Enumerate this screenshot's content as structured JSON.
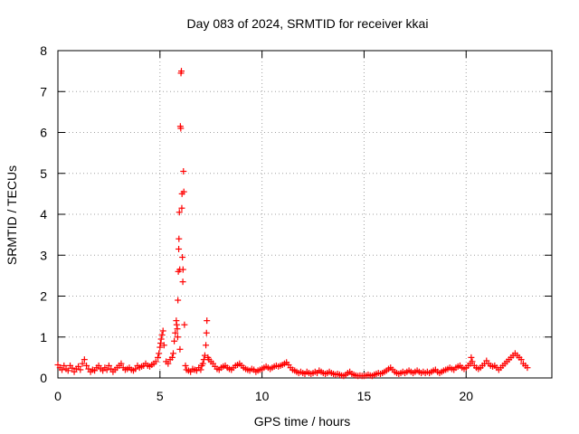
{
  "chart_data": {
    "type": "scatter",
    "title": "Day 083 of 2024, SRMTID for receiver kkai",
    "xlabel": "GPS time / hours",
    "ylabel": "SRMTID / TECUs",
    "xlim": [
      0,
      24.2
    ],
    "ylim": [
      0,
      8
    ],
    "x_ticks": [
      0,
      5,
      10,
      15,
      20
    ],
    "y_ticks": [
      0,
      1,
      2,
      3,
      4,
      5,
      6,
      7,
      8
    ],
    "grid": true,
    "marker": "+",
    "marker_color": "#ff0000",
    "series": [
      {
        "name": "SRMTID",
        "points": [
          [
            0.0,
            0.32
          ],
          [
            0.1,
            0.25
          ],
          [
            0.2,
            0.2
          ],
          [
            0.3,
            0.3
          ],
          [
            0.4,
            0.22
          ],
          [
            0.5,
            0.18
          ],
          [
            0.6,
            0.3
          ],
          [
            0.7,
            0.24
          ],
          [
            0.8,
            0.15
          ],
          [
            0.9,
            0.22
          ],
          [
            1.0,
            0.28
          ],
          [
            1.1,
            0.2
          ],
          [
            1.2,
            0.35
          ],
          [
            1.3,
            0.45
          ],
          [
            1.4,
            0.3
          ],
          [
            1.5,
            0.22
          ],
          [
            1.6,
            0.15
          ],
          [
            1.7,
            0.2
          ],
          [
            1.8,
            0.18
          ],
          [
            1.9,
            0.25
          ],
          [
            2.0,
            0.3
          ],
          [
            2.1,
            0.22
          ],
          [
            2.2,
            0.18
          ],
          [
            2.3,
            0.25
          ],
          [
            2.4,
            0.2
          ],
          [
            2.5,
            0.3
          ],
          [
            2.6,
            0.22
          ],
          [
            2.7,
            0.15
          ],
          [
            2.8,
            0.2
          ],
          [
            2.9,
            0.25
          ],
          [
            3.0,
            0.3
          ],
          [
            3.1,
            0.35
          ],
          [
            3.2,
            0.25
          ],
          [
            3.3,
            0.2
          ],
          [
            3.4,
            0.22
          ],
          [
            3.5,
            0.25
          ],
          [
            3.6,
            0.2
          ],
          [
            3.7,
            0.18
          ],
          [
            3.8,
            0.22
          ],
          [
            3.9,
            0.3
          ],
          [
            4.0,
            0.25
          ],
          [
            4.1,
            0.28
          ],
          [
            4.2,
            0.3
          ],
          [
            4.3,
            0.35
          ],
          [
            4.4,
            0.3
          ],
          [
            4.5,
            0.28
          ],
          [
            4.6,
            0.32
          ],
          [
            4.7,
            0.35
          ],
          [
            4.8,
            0.4
          ],
          [
            4.9,
            0.5
          ],
          [
            4.95,
            0.6
          ],
          [
            5.0,
            0.75
          ],
          [
            5.03,
            0.85
          ],
          [
            5.06,
            0.95
          ],
          [
            5.1,
            1.05
          ],
          [
            5.15,
            1.15
          ],
          [
            5.2,
            0.8
          ],
          [
            5.3,
            0.4
          ],
          [
            5.4,
            0.35
          ],
          [
            5.5,
            0.45
          ],
          [
            5.6,
            0.5
          ],
          [
            5.65,
            0.6
          ],
          [
            5.7,
            0.9
          ],
          [
            5.75,
            1.1
          ],
          [
            5.8,
            1.4
          ],
          [
            5.82,
            1.3
          ],
          [
            5.85,
            1.2
          ],
          [
            5.87,
            1.0
          ],
          [
            5.88,
            1.9
          ],
          [
            5.9,
            2.6
          ],
          [
            5.92,
            3.15
          ],
          [
            5.93,
            3.4
          ],
          [
            5.95,
            4.05
          ],
          [
            5.97,
            2.65
          ],
          [
            5.98,
            0.7
          ],
          [
            6.0,
            6.15
          ],
          [
            6.02,
            6.1
          ],
          [
            6.03,
            7.45
          ],
          [
            6.05,
            7.5
          ],
          [
            6.07,
            4.15
          ],
          [
            6.08,
            4.5
          ],
          [
            6.1,
            2.95
          ],
          [
            6.12,
            2.35
          ],
          [
            6.13,
            2.65
          ],
          [
            6.15,
            5.05
          ],
          [
            6.17,
            4.55
          ],
          [
            6.2,
            1.3
          ],
          [
            6.25,
            0.3
          ],
          [
            6.3,
            0.2
          ],
          [
            6.4,
            0.18
          ],
          [
            6.5,
            0.15
          ],
          [
            6.6,
            0.22
          ],
          [
            6.7,
            0.2
          ],
          [
            6.8,
            0.18
          ],
          [
            6.9,
            0.25
          ],
          [
            7.0,
            0.2
          ],
          [
            7.05,
            0.3
          ],
          [
            7.1,
            0.35
          ],
          [
            7.15,
            0.45
          ],
          [
            7.2,
            0.55
          ],
          [
            7.25,
            0.8
          ],
          [
            7.28,
            1.1
          ],
          [
            7.3,
            1.4
          ],
          [
            7.35,
            0.5
          ],
          [
            7.4,
            0.45
          ],
          [
            7.5,
            0.4
          ],
          [
            7.6,
            0.35
          ],
          [
            7.7,
            0.28
          ],
          [
            7.8,
            0.22
          ],
          [
            7.9,
            0.2
          ],
          [
            8.0,
            0.25
          ],
          [
            8.1,
            0.28
          ],
          [
            8.2,
            0.3
          ],
          [
            8.3,
            0.25
          ],
          [
            8.4,
            0.22
          ],
          [
            8.5,
            0.2
          ],
          [
            8.6,
            0.25
          ],
          [
            8.7,
            0.3
          ],
          [
            8.8,
            0.32
          ],
          [
            8.9,
            0.35
          ],
          [
            9.0,
            0.3
          ],
          [
            9.1,
            0.25
          ],
          [
            9.2,
            0.22
          ],
          [
            9.3,
            0.2
          ],
          [
            9.4,
            0.18
          ],
          [
            9.5,
            0.22
          ],
          [
            9.6,
            0.2
          ],
          [
            9.7,
            0.15
          ],
          [
            9.8,
            0.18
          ],
          [
            9.9,
            0.2
          ],
          [
            10.0,
            0.22
          ],
          [
            10.1,
            0.25
          ],
          [
            10.2,
            0.28
          ],
          [
            10.3,
            0.25
          ],
          [
            10.4,
            0.22
          ],
          [
            10.5,
            0.25
          ],
          [
            10.6,
            0.28
          ],
          [
            10.7,
            0.3
          ],
          [
            10.8,
            0.28
          ],
          [
            10.9,
            0.3
          ],
          [
            11.0,
            0.32
          ],
          [
            11.1,
            0.35
          ],
          [
            11.2,
            0.38
          ],
          [
            11.3,
            0.32
          ],
          [
            11.4,
            0.25
          ],
          [
            11.5,
            0.2
          ],
          [
            11.6,
            0.18
          ],
          [
            11.7,
            0.15
          ],
          [
            11.8,
            0.12
          ],
          [
            11.9,
            0.15
          ],
          [
            12.0,
            0.12
          ],
          [
            12.1,
            0.1
          ],
          [
            12.2,
            0.15
          ],
          [
            12.3,
            0.12
          ],
          [
            12.4,
            0.1
          ],
          [
            12.5,
            0.12
          ],
          [
            12.6,
            0.15
          ],
          [
            12.7,
            0.12
          ],
          [
            12.8,
            0.18
          ],
          [
            12.9,
            0.15
          ],
          [
            13.0,
            0.12
          ],
          [
            13.1,
            0.1
          ],
          [
            13.2,
            0.12
          ],
          [
            13.3,
            0.15
          ],
          [
            13.4,
            0.12
          ],
          [
            13.5,
            0.1
          ],
          [
            13.6,
            0.08
          ],
          [
            13.7,
            0.1
          ],
          [
            13.8,
            0.08
          ],
          [
            13.9,
            0.06
          ],
          [
            14.0,
            0.05
          ],
          [
            14.1,
            0.08
          ],
          [
            14.2,
            0.12
          ],
          [
            14.3,
            0.15
          ],
          [
            14.4,
            0.1
          ],
          [
            14.5,
            0.08
          ],
          [
            14.6,
            0.06
          ],
          [
            14.7,
            0.05
          ],
          [
            14.8,
            0.06
          ],
          [
            14.9,
            0.05
          ],
          [
            15.0,
            0.05
          ],
          [
            15.1,
            0.06
          ],
          [
            15.2,
            0.08
          ],
          [
            15.3,
            0.06
          ],
          [
            15.4,
            0.05
          ],
          [
            15.5,
            0.08
          ],
          [
            15.6,
            0.1
          ],
          [
            15.7,
            0.12
          ],
          [
            15.8,
            0.1
          ],
          [
            15.9,
            0.12
          ],
          [
            16.0,
            0.15
          ],
          [
            16.1,
            0.18
          ],
          [
            16.2,
            0.22
          ],
          [
            16.3,
            0.25
          ],
          [
            16.4,
            0.2
          ],
          [
            16.5,
            0.15
          ],
          [
            16.6,
            0.12
          ],
          [
            16.7,
            0.1
          ],
          [
            16.8,
            0.12
          ],
          [
            16.9,
            0.15
          ],
          [
            17.0,
            0.12
          ],
          [
            17.1,
            0.15
          ],
          [
            17.2,
            0.18
          ],
          [
            17.3,
            0.15
          ],
          [
            17.4,
            0.12
          ],
          [
            17.5,
            0.15
          ],
          [
            17.6,
            0.18
          ],
          [
            17.7,
            0.15
          ],
          [
            17.8,
            0.12
          ],
          [
            17.9,
            0.15
          ],
          [
            18.0,
            0.12
          ],
          [
            18.1,
            0.15
          ],
          [
            18.2,
            0.12
          ],
          [
            18.3,
            0.15
          ],
          [
            18.4,
            0.18
          ],
          [
            18.5,
            0.2
          ],
          [
            18.6,
            0.15
          ],
          [
            18.7,
            0.12
          ],
          [
            18.8,
            0.15
          ],
          [
            18.9,
            0.18
          ],
          [
            19.0,
            0.2
          ],
          [
            19.1,
            0.22
          ],
          [
            19.2,
            0.25
          ],
          [
            19.3,
            0.22
          ],
          [
            19.4,
            0.2
          ],
          [
            19.5,
            0.25
          ],
          [
            19.6,
            0.28
          ],
          [
            19.7,
            0.3
          ],
          [
            19.8,
            0.25
          ],
          [
            19.9,
            0.22
          ],
          [
            20.0,
            0.25
          ],
          [
            20.1,
            0.3
          ],
          [
            20.2,
            0.35
          ],
          [
            20.25,
            0.5
          ],
          [
            20.3,
            0.4
          ],
          [
            20.4,
            0.3
          ],
          [
            20.5,
            0.25
          ],
          [
            20.6,
            0.22
          ],
          [
            20.7,
            0.25
          ],
          [
            20.8,
            0.3
          ],
          [
            20.9,
            0.35
          ],
          [
            21.0,
            0.42
          ],
          [
            21.1,
            0.35
          ],
          [
            21.2,
            0.3
          ],
          [
            21.3,
            0.28
          ],
          [
            21.4,
            0.3
          ],
          [
            21.5,
            0.25
          ],
          [
            21.6,
            0.2
          ],
          [
            21.7,
            0.25
          ],
          [
            21.8,
            0.3
          ],
          [
            21.9,
            0.35
          ],
          [
            22.0,
            0.4
          ],
          [
            22.1,
            0.45
          ],
          [
            22.2,
            0.5
          ],
          [
            22.3,
            0.55
          ],
          [
            22.4,
            0.6
          ],
          [
            22.5,
            0.55
          ],
          [
            22.6,
            0.5
          ],
          [
            22.7,
            0.45
          ],
          [
            22.8,
            0.35
          ],
          [
            22.9,
            0.3
          ],
          [
            23.0,
            0.25
          ]
        ]
      }
    ]
  }
}
